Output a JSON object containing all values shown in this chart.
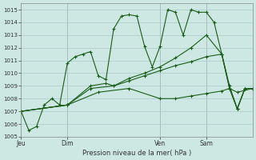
{
  "title": "Pression niveau de la mer( hPa )",
  "bg_color": "#cde8e2",
  "grid_color": "#aacccc",
  "line_color": "#1a5c1a",
  "ylim": [
    1005,
    1015.5
  ],
  "yticks": [
    1005,
    1006,
    1007,
    1008,
    1009,
    1010,
    1011,
    1012,
    1013,
    1014,
    1015
  ],
  "day_labels": [
    "Jeu",
    "Dim",
    "Ven",
    "Sam"
  ],
  "day_positions": [
    0,
    6,
    18,
    24
  ],
  "xlim_max": 30,
  "series1_x": [
    0,
    1,
    2,
    3,
    4,
    5,
    6,
    7,
    8,
    9,
    10,
    11,
    12,
    13,
    14,
    15,
    16,
    17,
    18,
    19,
    20,
    21,
    22,
    23,
    24,
    25,
    26,
    27,
    28,
    29,
    30
  ],
  "series1": [
    1007.0,
    1005.5,
    1005.8,
    1007.5,
    1008.0,
    1007.5,
    1010.8,
    1011.3,
    1011.5,
    1011.7,
    1009.8,
    1009.5,
    1013.5,
    1014.5,
    1014.6,
    1014.5,
    1012.1,
    1010.5,
    1012.1,
    1015.0,
    1014.8,
    1013.0,
    1015.0,
    1014.8,
    1014.8,
    1014.0,
    1011.5,
    1009.0,
    1007.2,
    1008.8,
    1008.8
  ],
  "series2_x": [
    0,
    6,
    9,
    11,
    12,
    14,
    16,
    18,
    20,
    22,
    24,
    26,
    27,
    28,
    29,
    30
  ],
  "series2": [
    1007.0,
    1007.5,
    1009.0,
    1009.2,
    1009.0,
    1009.6,
    1010.0,
    1010.5,
    1011.2,
    1012.0,
    1013.0,
    1011.5,
    1008.8,
    1007.2,
    1008.8,
    1008.8
  ],
  "series3_x": [
    0,
    6,
    9,
    12,
    14,
    16,
    18,
    20,
    22,
    24,
    26,
    27,
    28,
    29,
    30
  ],
  "series3": [
    1007.0,
    1007.5,
    1008.8,
    1009.0,
    1009.4,
    1009.8,
    1010.2,
    1010.6,
    1010.9,
    1011.3,
    1011.5,
    1008.8,
    1007.2,
    1008.8,
    1008.8
  ],
  "series4_x": [
    0,
    6,
    10,
    14,
    18,
    20,
    22,
    24,
    26,
    27,
    28,
    30
  ],
  "series4": [
    1007.0,
    1007.5,
    1008.5,
    1008.8,
    1008.0,
    1008.0,
    1008.2,
    1008.4,
    1008.6,
    1008.8,
    1008.5,
    1008.8
  ]
}
